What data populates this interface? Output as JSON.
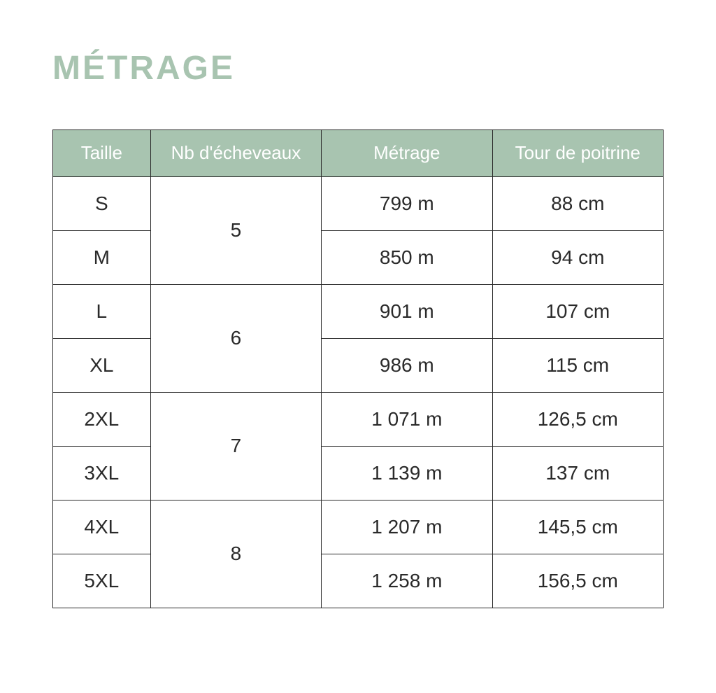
{
  "title": "MÉTRAGE",
  "table": {
    "columns": [
      "Taille",
      "Nb d'écheveaux",
      "Métrage",
      "Tour de poitrine"
    ],
    "headerBg": "#a8c4b0",
    "headerColor": "#ffffff",
    "borderColor": "#2a2a2a",
    "cellColor": "#2a2a2a",
    "titleColor": "#a8c4b0",
    "groups": [
      {
        "nb": "5",
        "rows": [
          {
            "taille": "S",
            "metrage": "799 m",
            "tour": "88 cm"
          },
          {
            "taille": "M",
            "metrage": "850 m",
            "tour": "94 cm"
          }
        ]
      },
      {
        "nb": "6",
        "rows": [
          {
            "taille": "L",
            "metrage": "901 m",
            "tour": "107 cm"
          },
          {
            "taille": "XL",
            "metrage": "986 m",
            "tour": "115 cm"
          }
        ]
      },
      {
        "nb": "7",
        "rows": [
          {
            "taille": "2XL",
            "metrage": "1 071 m",
            "tour": "126,5 cm"
          },
          {
            "taille": "3XL",
            "metrage": "1 139 m",
            "tour": "137 cm"
          }
        ]
      },
      {
        "nb": "8",
        "rows": [
          {
            "taille": "4XL",
            "metrage": "1 207 m",
            "tour": "145,5 cm"
          },
          {
            "taille": "5XL",
            "metrage": "1 258 m",
            "tour": "156,5 cm"
          }
        ]
      }
    ]
  }
}
